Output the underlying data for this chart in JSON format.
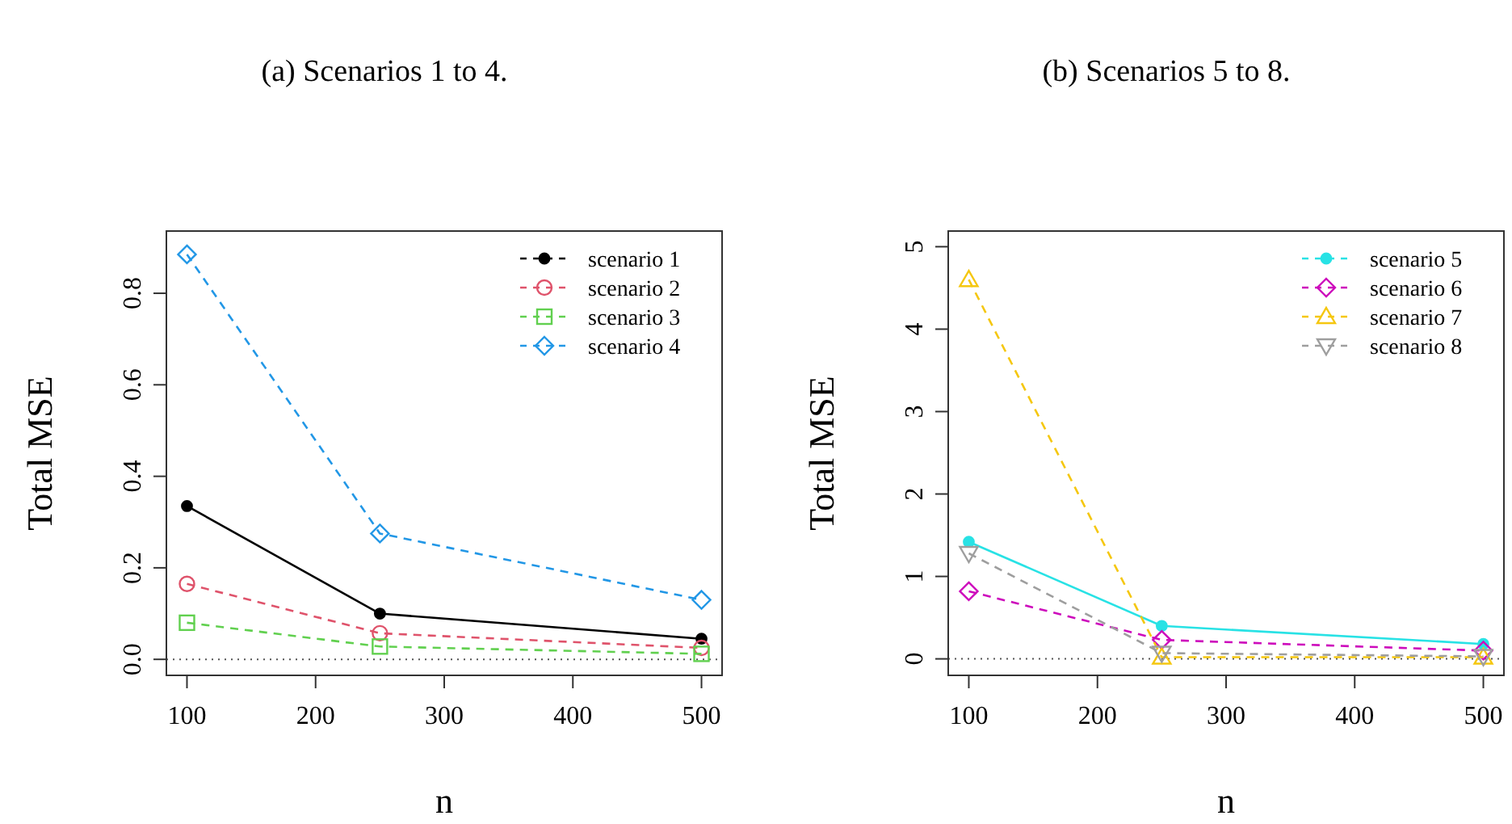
{
  "chart_data": [
    {
      "type": "line",
      "title": "(a) Scenarios 1 to 4.",
      "xlabel": "n",
      "ylabel": "Total MSE",
      "x": [
        100,
        250,
        500
      ],
      "xlim": [
        84,
        516
      ],
      "xticks": [
        100,
        200,
        300,
        400,
        500
      ],
      "ylim": [
        -0.035,
        0.936
      ],
      "yticks": [
        {
          "value": 0,
          "label": "0.0"
        },
        {
          "value": 0.2,
          "label": "0.2"
        },
        {
          "value": 0.4,
          "label": "0.4"
        },
        {
          "value": 0.6,
          "label": "0.6"
        },
        {
          "value": 0.8,
          "label": "0.8"
        }
      ],
      "legend": "top right",
      "grid": false,
      "ref_lines": [
        {
          "axis": "y",
          "value": 0,
          "color": "#555555",
          "line_style": "dotted"
        }
      ],
      "series": [
        {
          "name": "scenario 1",
          "color": "#000000",
          "values": [
            0.335,
            0.1,
            0.045
          ],
          "marker": "filled-circle",
          "line_style": "solid"
        },
        {
          "name": "scenario 2",
          "color": "#df536b",
          "values": [
            0.165,
            0.057,
            0.025
          ],
          "marker": "circle",
          "line_style": "dashed"
        },
        {
          "name": "scenario 3",
          "color": "#61d04f",
          "values": [
            0.08,
            0.028,
            0.012
          ],
          "marker": "square",
          "line_style": "dashed"
        },
        {
          "name": "scenario 4",
          "color": "#2297e6",
          "values": [
            0.885,
            0.275,
            0.13
          ],
          "marker": "diamond",
          "line_style": "dashed"
        }
      ]
    },
    {
      "type": "line",
      "title": "(b) Scenarios 5 to 8.",
      "xlabel": "n",
      "ylabel": "Total MSE",
      "x": [
        100,
        250,
        500
      ],
      "xlim": [
        84,
        516
      ],
      "xticks": [
        100,
        200,
        300,
        400,
        500
      ],
      "ylim": [
        -0.2,
        5.19
      ],
      "yticks": [
        0,
        1,
        2,
        3,
        4,
        5
      ],
      "legend": "top right",
      "grid": false,
      "ref_lines": [
        {
          "axis": "y",
          "value": 0,
          "color": "#555555",
          "line_style": "dotted"
        }
      ],
      "series": [
        {
          "name": "scenario 5",
          "color": "#28e2e5",
          "values": [
            1.42,
            0.4,
            0.18
          ],
          "marker": "filled-circle",
          "line_style": "solid"
        },
        {
          "name": "scenario 6",
          "color": "#cd0bbc",
          "values": [
            0.82,
            0.23,
            0.1
          ],
          "marker": "diamond",
          "line_style": "dashed"
        },
        {
          "name": "scenario 7",
          "color": "#f5c710",
          "values": [
            4.6,
            0.02,
            0.02
          ],
          "marker": "triangle",
          "line_style": "dashed"
        },
        {
          "name": "scenario 8",
          "color": "#9e9e9e",
          "values": [
            1.28,
            0.07,
            0.03
          ],
          "marker": "triangle-down",
          "line_style": "dashed"
        }
      ]
    }
  ]
}
